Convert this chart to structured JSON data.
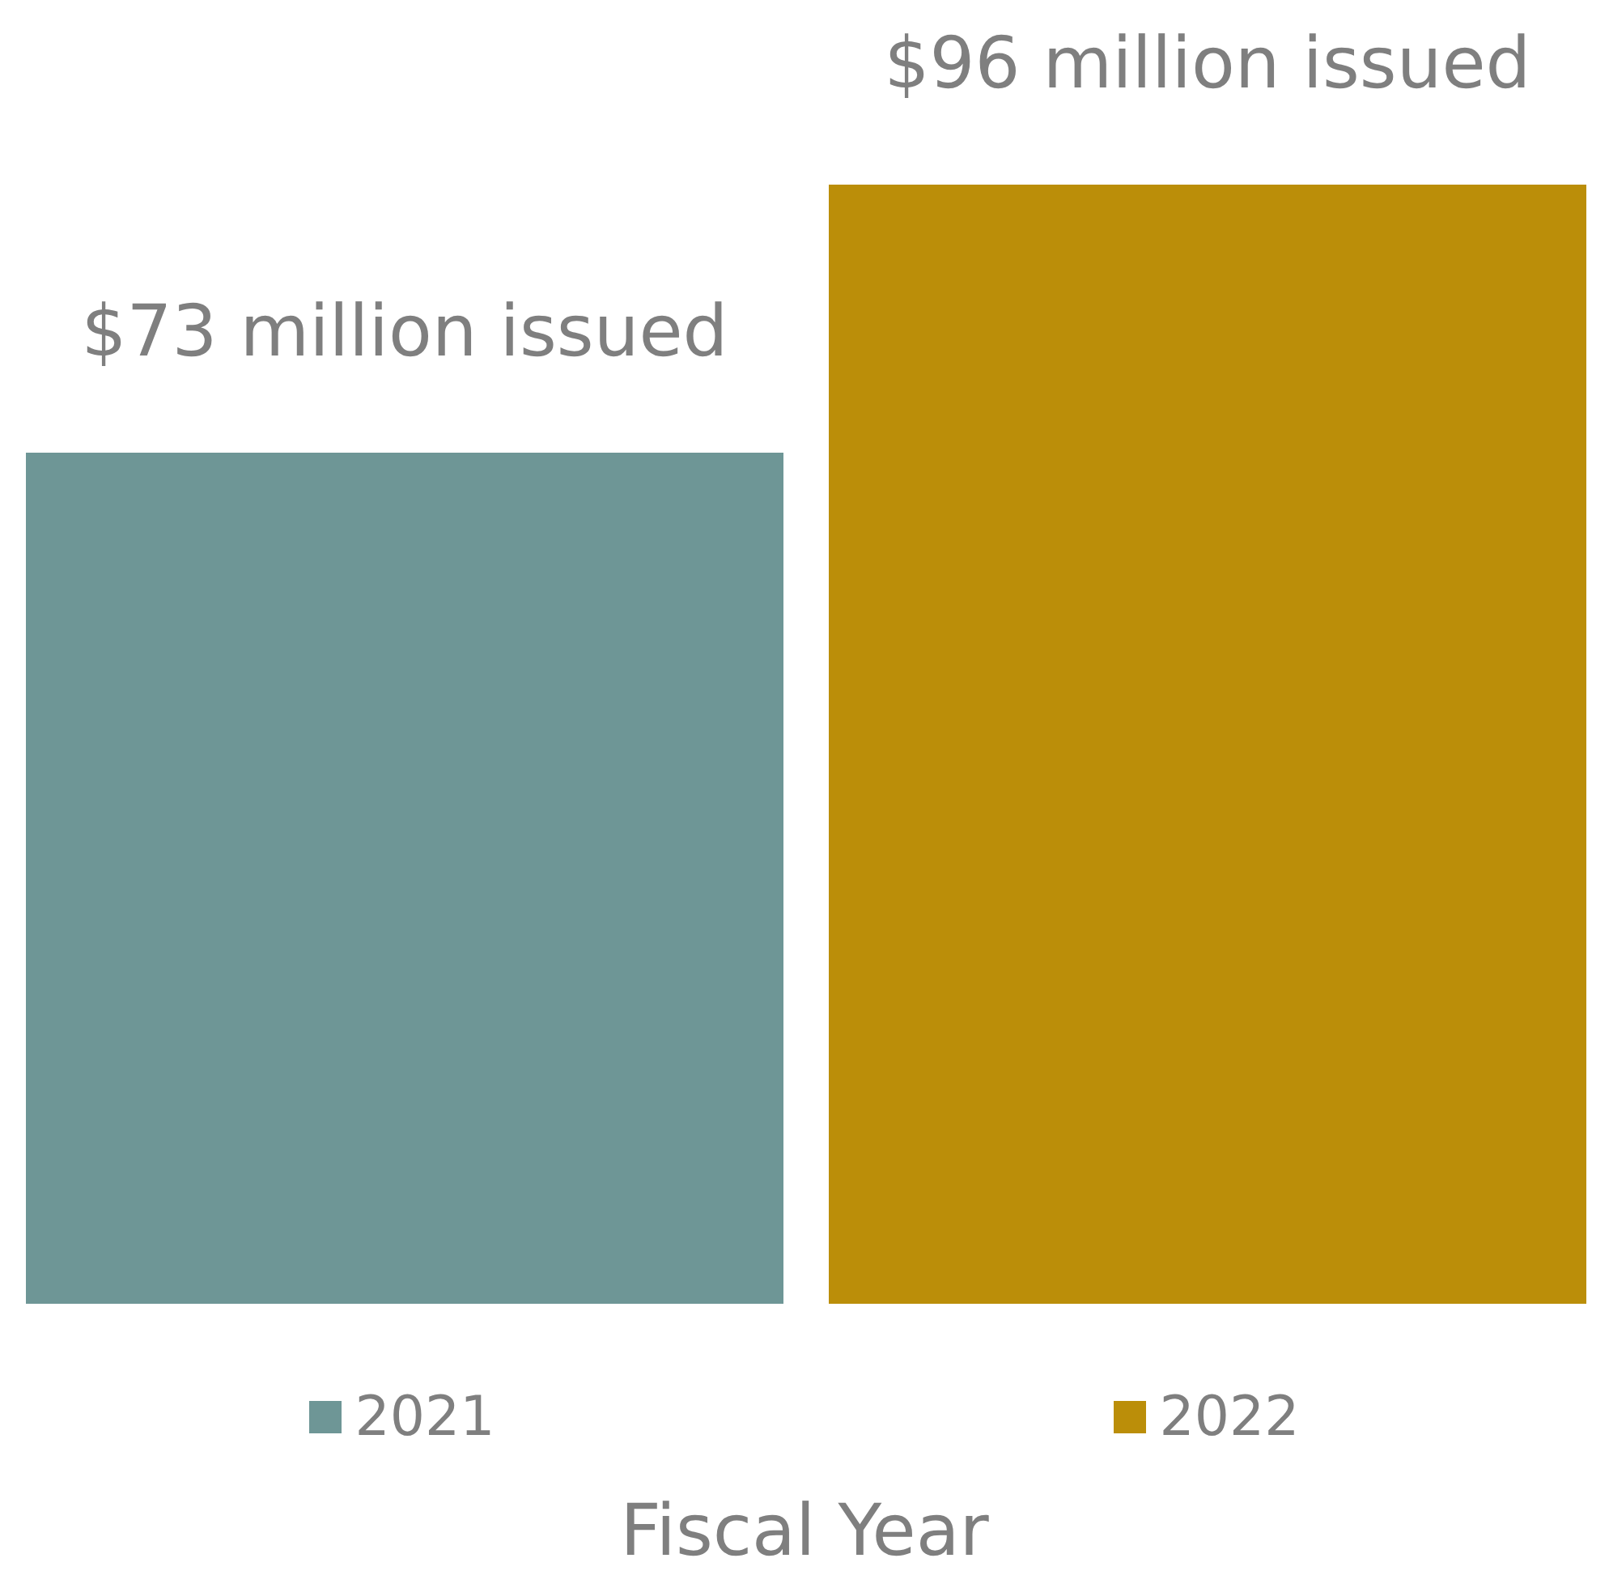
{
  "chart_data": {
    "type": "bar",
    "stacked": true,
    "xlabel": "Fiscal Year",
    "categories": [
      null,
      null
    ],
    "legend": "bottom",
    "series": [
      {
        "name": "2021",
        "color": "#6e9696",
        "values": [
          73,
          null
        ],
        "value_labels": [
          "$73 million issued",
          null
        ]
      },
      {
        "name": "2022",
        "color": "#bb8e09",
        "values": [
          null,
          96
        ],
        "value_labels": [
          null,
          "$96 million issued"
        ]
      }
    ]
  }
}
